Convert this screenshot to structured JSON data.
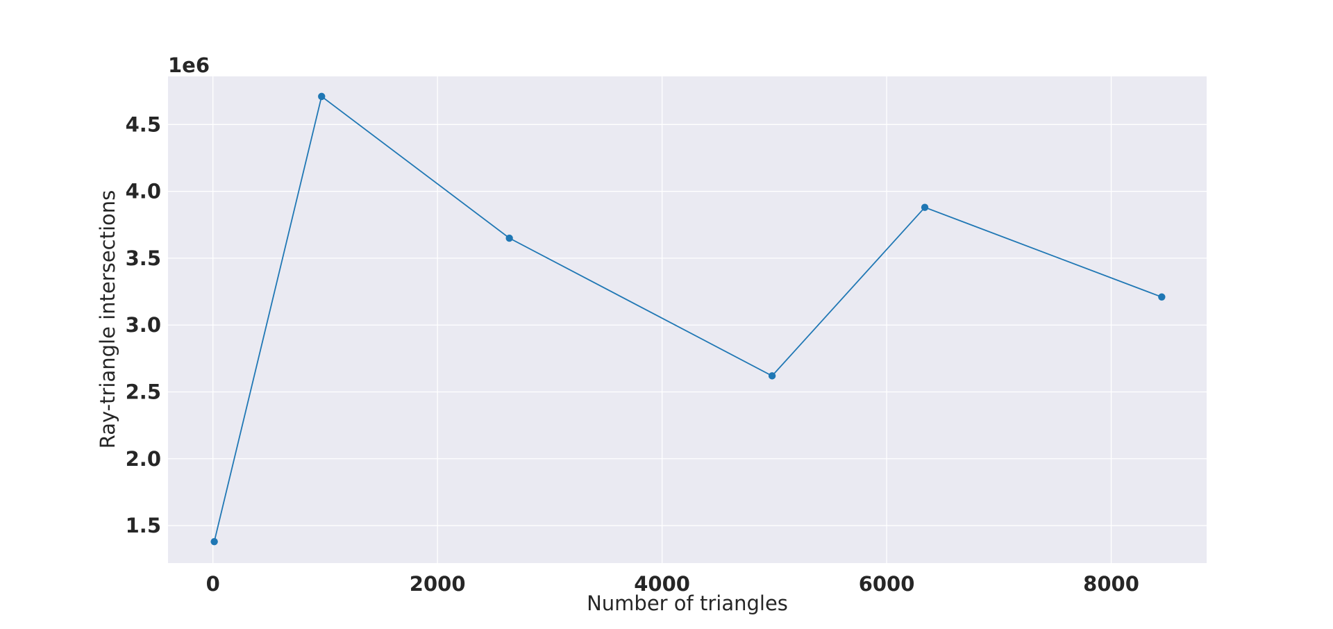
{
  "chart_data": {
    "type": "line",
    "title": "",
    "xlabel": "Number of triangles",
    "ylabel": "Ray-triangle intersections",
    "y_offset_label": "1e6",
    "xlim": [
      -400,
      8850
    ],
    "ylim": [
      1.22,
      4.86
    ],
    "x_ticks": [
      0,
      2000,
      4000,
      6000,
      8000
    ],
    "x_tick_labels": [
      "0",
      "2000",
      "4000",
      "6000",
      "8000"
    ],
    "y_ticks": [
      1.5,
      2.0,
      2.5,
      3.0,
      3.5,
      4.0,
      4.5
    ],
    "y_tick_labels": [
      "1.5",
      "2.0",
      "2.5",
      "3.0",
      "3.5",
      "4.0",
      "4.5"
    ],
    "grid": true,
    "series": [
      {
        "x": [
          12,
          968,
          2640,
          4980,
          6340,
          8450
        ],
        "y": [
          1.38,
          4.71,
          3.65,
          2.62,
          3.88,
          3.21
        ]
      }
    ],
    "colors": {
      "line": "#1f77b4",
      "plot_background": "#eaeaf2",
      "grid": "#ffffff",
      "text": "#262626"
    }
  }
}
